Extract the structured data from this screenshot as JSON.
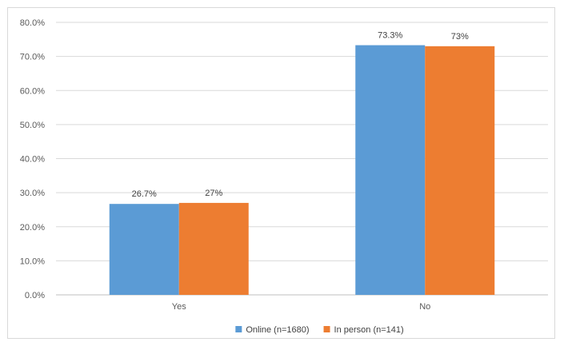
{
  "chart_data": {
    "type": "bar",
    "categories": [
      "Yes",
      "No"
    ],
    "series": [
      {
        "name": "Online (n=1680)",
        "values": [
          26.7,
          73.3
        ],
        "labels": [
          "26.7%",
          "73.3%"
        ],
        "color": "#5b9bd5"
      },
      {
        "name": "In person (n=141)",
        "values": [
          27,
          73
        ],
        "labels": [
          "27%",
          "73%"
        ],
        "color": "#ed7d31"
      }
    ],
    "ylim": [
      0,
      80
    ],
    "yticks": [
      "0.0%",
      "10.0%",
      "20.0%",
      "30.0%",
      "40.0%",
      "50.0%",
      "60.0%",
      "70.0%",
      "80.0%"
    ],
    "grid": true,
    "legend": "bottom"
  }
}
